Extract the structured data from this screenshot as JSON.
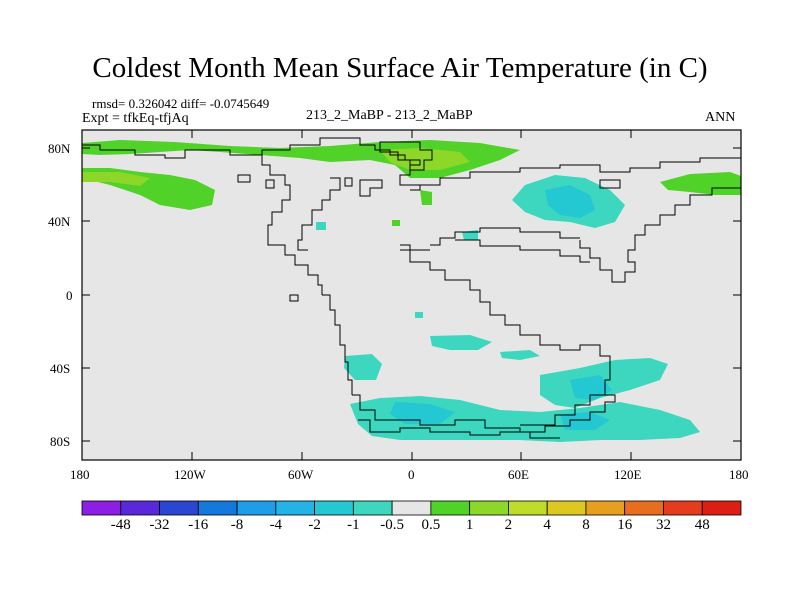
{
  "title": "Coldest Month Mean Surface Air Temperature (in C)",
  "stats": {
    "rmsd_diff": "rmsd= 0.326042 diff= -0.0745649",
    "expt": "Expt = tfkEq-tfjAq",
    "center": "213_2_MaBP - 213_2_MaBP",
    "season": "ANN"
  },
  "axes": {
    "lat_ticks": [
      "80N",
      "40N",
      "0",
      "40S",
      "80S"
    ],
    "lon_ticks": [
      "180",
      "120W",
      "60W",
      "0",
      "60E",
      "120E",
      "180"
    ]
  },
  "colorbar": {
    "labels": [
      "-48",
      "-32",
      "-16",
      "-8",
      "-4",
      "-2",
      "-1",
      "-0.5",
      "0.5",
      "1",
      "2",
      "4",
      "8",
      "16",
      "32",
      "48"
    ],
    "colors": [
      "#8c1ee6",
      "#5a28dc",
      "#2a46d2",
      "#1478dc",
      "#1e9ee6",
      "#23b4e6",
      "#23c8d2",
      "#3cd7be",
      "#e6e6e6",
      "#50d228",
      "#8cd728",
      "#bedc28",
      "#dcc81e",
      "#e6a01e",
      "#e66e1e",
      "#e63c1e",
      "#dc1e14"
    ]
  },
  "map": {
    "background_color": "#e6e6e6",
    "lon_range": [
      -180,
      180
    ],
    "lat_range": [
      -90,
      90
    ]
  }
}
